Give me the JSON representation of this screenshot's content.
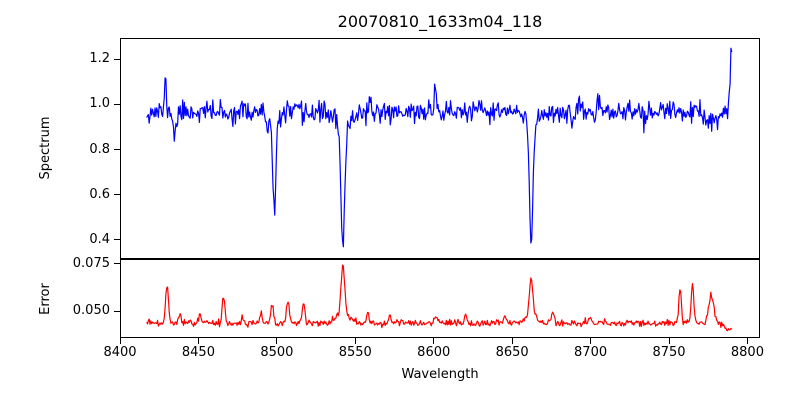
{
  "figure": {
    "title": "20070810_1633m04_118",
    "xlabel": "Wavelength",
    "background": "#ffffff",
    "text_color": "#000000",
    "spine_color": "#000000",
    "xlim": [
      8400,
      8808
    ],
    "xticks": [
      {
        "value": 8400,
        "label": "8400"
      },
      {
        "value": 8450,
        "label": "8450"
      },
      {
        "value": 8500,
        "label": "8500"
      },
      {
        "value": 8550,
        "label": "8550"
      },
      {
        "value": 8600,
        "label": "8600"
      },
      {
        "value": 8650,
        "label": "8650"
      },
      {
        "value": 8700,
        "label": "8700"
      },
      {
        "value": 8750,
        "label": "8750"
      },
      {
        "value": 8800,
        "label": "8800"
      }
    ]
  },
  "chart_data": [
    {
      "id": "spectrum",
      "type": "line",
      "ylabel": "Spectrum",
      "color": "#0000ff",
      "line_width": 1.2,
      "ylim": [
        0.3155,
        1.2945
      ],
      "yticks": [
        {
          "value": 0.4,
          "label": "0.4"
        },
        {
          "value": 0.6,
          "label": "0.6"
        },
        {
          "value": 0.8,
          "label": "0.8"
        },
        {
          "value": 1.0,
          "label": "1.0"
        },
        {
          "value": 1.2,
          "label": "1.2"
        }
      ],
      "x_start": 8417,
      "x_end": 8790,
      "n_points": 700,
      "model": {
        "baseline": 0.968,
        "noise_sigma": 0.023,
        "seed": 11,
        "features": [
          [
            8429.0,
            0.13,
            0.6
          ],
          [
            8435.0,
            -0.105,
            1.0
          ],
          [
            8468.0,
            -0.045,
            0.7
          ],
          [
            8494.0,
            -0.075,
            0.7
          ],
          [
            8498.3,
            -0.42,
            1.0
          ],
          [
            8498.3,
            -0.04,
            3.5
          ],
          [
            8517.0,
            -0.05,
            0.7
          ],
          [
            8542.1,
            -0.55,
            1.2
          ],
          [
            8542.1,
            -0.065,
            4.5
          ],
          [
            8601.0,
            0.145,
            0.55
          ],
          [
            8662.1,
            -0.51,
            1.1
          ],
          [
            8662.1,
            -0.06,
            4.0
          ],
          [
            8688.0,
            -0.055,
            0.8
          ],
          [
            8735.0,
            -0.04,
            0.7
          ],
          [
            8777.0,
            -0.045,
            5.0
          ],
          [
            8789.8,
            0.28,
            0.7
          ]
        ]
      },
      "key_points": [
        {
          "x": 8435,
          "y": 0.86,
          "desc": "small absorption dip"
        },
        {
          "x": 8498,
          "y": 0.51,
          "desc": "absorption line"
        },
        {
          "x": 8542,
          "y": 0.36,
          "desc": "deepest absorption line"
        },
        {
          "x": 8601,
          "y": 1.13,
          "desc": "narrow upward spike"
        },
        {
          "x": 8662,
          "y": 0.4,
          "desc": "absorption line"
        },
        {
          "x": 8790,
          "y": 1.24,
          "desc": "spike at red end of spectrum"
        }
      ]
    },
    {
      "id": "error",
      "type": "line",
      "ylabel": "Error",
      "color": "#ff0000",
      "line_width": 1.2,
      "ylim": [
        0.036,
        0.0775
      ],
      "yticks": [
        {
          "value": 0.05,
          "label": "0.050"
        },
        {
          "value": 0.075,
          "label": "0.075"
        }
      ],
      "x_start": 8417,
      "x_end": 8790,
      "n_points": 700,
      "model": {
        "baseline": 0.0438,
        "noise_sigma": 0.0009,
        "seed": 99,
        "features": [
          [
            8430.0,
            0.0205,
            0.9
          ],
          [
            8438.0,
            0.005,
            0.7
          ],
          [
            8451.0,
            0.005,
            0.7
          ],
          [
            8466.0,
            0.0145,
            0.8
          ],
          [
            8478.0,
            0.004,
            0.7
          ],
          [
            8490.0,
            0.005,
            0.7
          ],
          [
            8497.0,
            0.0095,
            0.8
          ],
          [
            8507.0,
            0.0125,
            0.8
          ],
          [
            8517.0,
            0.0105,
            0.8
          ],
          [
            8542.1,
            0.026,
            1.1
          ],
          [
            8542.1,
            0.005,
            4.0
          ],
          [
            8558.0,
            0.005,
            0.8
          ],
          [
            8572.0,
            0.004,
            0.8
          ],
          [
            8601.0,
            0.004,
            0.8
          ],
          [
            8620.0,
            0.0045,
            0.9
          ],
          [
            8645.0,
            0.004,
            0.8
          ],
          [
            8662.1,
            0.019,
            1.0
          ],
          [
            8662.1,
            0.005,
            3.5
          ],
          [
            8676.0,
            0.006,
            0.8
          ],
          [
            8700.0,
            0.003,
            0.8
          ],
          [
            8757.0,
            0.018,
            0.8
          ],
          [
            8765.0,
            0.0205,
            0.8
          ],
          [
            8777.0,
            0.0145,
            1.6
          ],
          [
            8788.0,
            -0.004,
            2.0
          ]
        ]
      },
      "key_points": [
        {
          "x": 8430,
          "y": 0.064,
          "desc": "error spike"
        },
        {
          "x": 8466,
          "y": 0.058,
          "desc": "error spike"
        },
        {
          "x": 8507,
          "y": 0.056,
          "desc": "error spike"
        },
        {
          "x": 8542,
          "y": 0.075,
          "desc": "largest error spike"
        },
        {
          "x": 8662,
          "y": 0.068,
          "desc": "error spike"
        },
        {
          "x": 8757,
          "y": 0.062,
          "desc": "error spike"
        },
        {
          "x": 8765,
          "y": 0.065,
          "desc": "error spike"
        },
        {
          "x": 8777,
          "y": 0.058,
          "desc": "broad error bump"
        },
        {
          "x": 8790,
          "y": 0.04,
          "desc": "drop at end"
        }
      ]
    }
  ]
}
